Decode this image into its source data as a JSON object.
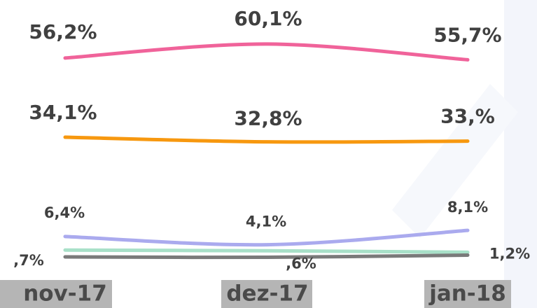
{
  "chart_data": {
    "type": "line",
    "categories": [
      "nov-17",
      "dez-17",
      "jan-18"
    ],
    "series": [
      {
        "color": "#f0639a",
        "values": [
          56.2,
          60.1,
          55.7
        ],
        "value_labels": [
          "56,2%",
          "60,1%",
          "55,7%"
        ]
      },
      {
        "color": "#f7980f",
        "values": [
          34.1,
          32.8,
          33.0
        ],
        "value_labels": [
          "34,1%",
          "32,8%",
          "33,%"
        ]
      },
      {
        "color": "#aaaaee",
        "values": [
          6.4,
          4.1,
          8.1
        ],
        "value_labels": [
          "6,4%",
          "4,1%",
          "8,1%"
        ]
      },
      {
        "color": "#a8e0c8",
        "values": [
          2.6,
          2.4,
          2.0
        ]
      },
      {
        "color": "#7a7a7a",
        "values": [
          0.7,
          0.6,
          1.2
        ],
        "value_labels": [
          ",7%",
          ",6%",
          "1,2%"
        ]
      }
    ]
  }
}
